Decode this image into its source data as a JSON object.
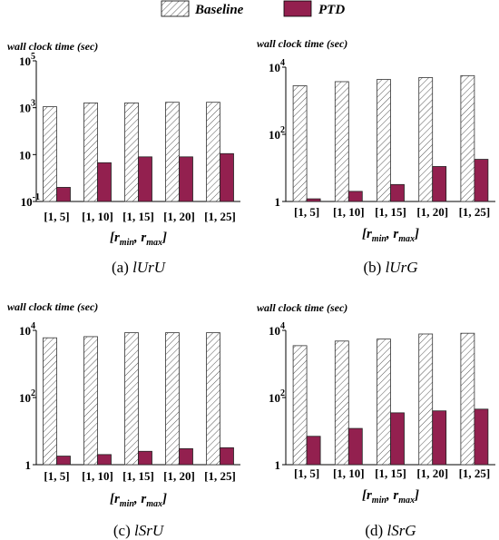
{
  "legend": [
    {
      "label": "Baseline",
      "style": "hatched",
      "color": "#ffffff"
    },
    {
      "label": "PTD",
      "style": "solid",
      "color": "#93204f"
    }
  ],
  "colors": {
    "ptd": "#93204f",
    "baseline_fill": "#ffffff",
    "hatch": "#555555",
    "axis": "#000000"
  },
  "chart_data": [
    {
      "type": "bar",
      "caption_prefix": "(a)",
      "caption_name": "lUrU",
      "ylabel": "wall clock time (sec)",
      "xlabel": "[r_min, r_max]",
      "yscale": "log",
      "ylim": [
        0.1,
        100000
      ],
      "yticks": [
        {
          "value": 0.1,
          "base": "10",
          "exp": "-1"
        },
        {
          "value": 10,
          "base": "10",
          "exp": ""
        },
        {
          "value": 1000,
          "base": "10",
          "exp": "3"
        },
        {
          "value": 100000,
          "base": "10",
          "exp": "5"
        }
      ],
      "categories": [
        "[1, 5]",
        "[1, 10]",
        "[1, 15]",
        "[1, 20]",
        "[1, 25]"
      ],
      "series": [
        {
          "name": "Baseline",
          "values": [
            1100,
            1600,
            1600,
            1700,
            1700
          ]
        },
        {
          "name": "PTD",
          "values": [
            0.4,
            4.5,
            8,
            8,
            11
          ]
        }
      ]
    },
    {
      "type": "bar",
      "caption_prefix": "(b)",
      "caption_name": "lUrG",
      "ylabel": "wall clock time (sec)",
      "xlabel": "[r_min, r_max]",
      "yscale": "log",
      "ylim": [
        1,
        10000
      ],
      "yticks": [
        {
          "value": 1,
          "base": "1",
          "exp": ""
        },
        {
          "value": 100,
          "base": "10",
          "exp": "2"
        },
        {
          "value": 10000,
          "base": "10",
          "exp": "4"
        }
      ],
      "categories": [
        "[1, 5]",
        "[1, 10]",
        "[1, 15]",
        "[1, 20]",
        "[1, 25]"
      ],
      "series": [
        {
          "name": "Baseline",
          "values": [
            2800,
            3700,
            4300,
            4900,
            5600
          ]
        },
        {
          "name": "PTD",
          "values": [
            1.2,
            2,
            3.2,
            11,
            18
          ]
        }
      ]
    },
    {
      "type": "bar",
      "caption_prefix": "(c)",
      "caption_name": "lSrU",
      "ylabel": "wall clock time (sec)",
      "xlabel": "[r_min, r_max]",
      "yscale": "log",
      "ylim": [
        1,
        10000
      ],
      "yticks": [
        {
          "value": 1,
          "base": "1",
          "exp": ""
        },
        {
          "value": 100,
          "base": "10",
          "exp": "2"
        },
        {
          "value": 10000,
          "base": "10",
          "exp": "4"
        }
      ],
      "categories": [
        "[1, 5]",
        "[1, 10]",
        "[1, 15]",
        "[1, 20]",
        "[1, 25]"
      ],
      "series": [
        {
          "name": "Baseline",
          "values": [
            6000,
            6500,
            8500,
            8500,
            8500
          ]
        },
        {
          "name": "PTD",
          "values": [
            1.8,
            2,
            2.5,
            3,
            3.2
          ]
        }
      ]
    },
    {
      "type": "bar",
      "caption_prefix": "(d)",
      "caption_name": "lSrG",
      "ylabel": "wall clock time (sec)",
      "xlabel": "[r_min, r_max]",
      "yscale": "log",
      "ylim": [
        1,
        10000
      ],
      "yticks": [
        {
          "value": 1,
          "base": "1",
          "exp": ""
        },
        {
          "value": 100,
          "base": "10",
          "exp": "2"
        },
        {
          "value": 10000,
          "base": "10",
          "exp": "4"
        }
      ],
      "categories": [
        "[1, 5]",
        "[1, 10]",
        "[1, 15]",
        "[1, 20]",
        "[1, 25]"
      ],
      "series": [
        {
          "name": "Baseline",
          "values": [
            3500,
            4800,
            5500,
            7800,
            8200
          ]
        },
        {
          "name": "PTD",
          "values": [
            7,
            12,
            35,
            40,
            45
          ]
        }
      ]
    }
  ]
}
